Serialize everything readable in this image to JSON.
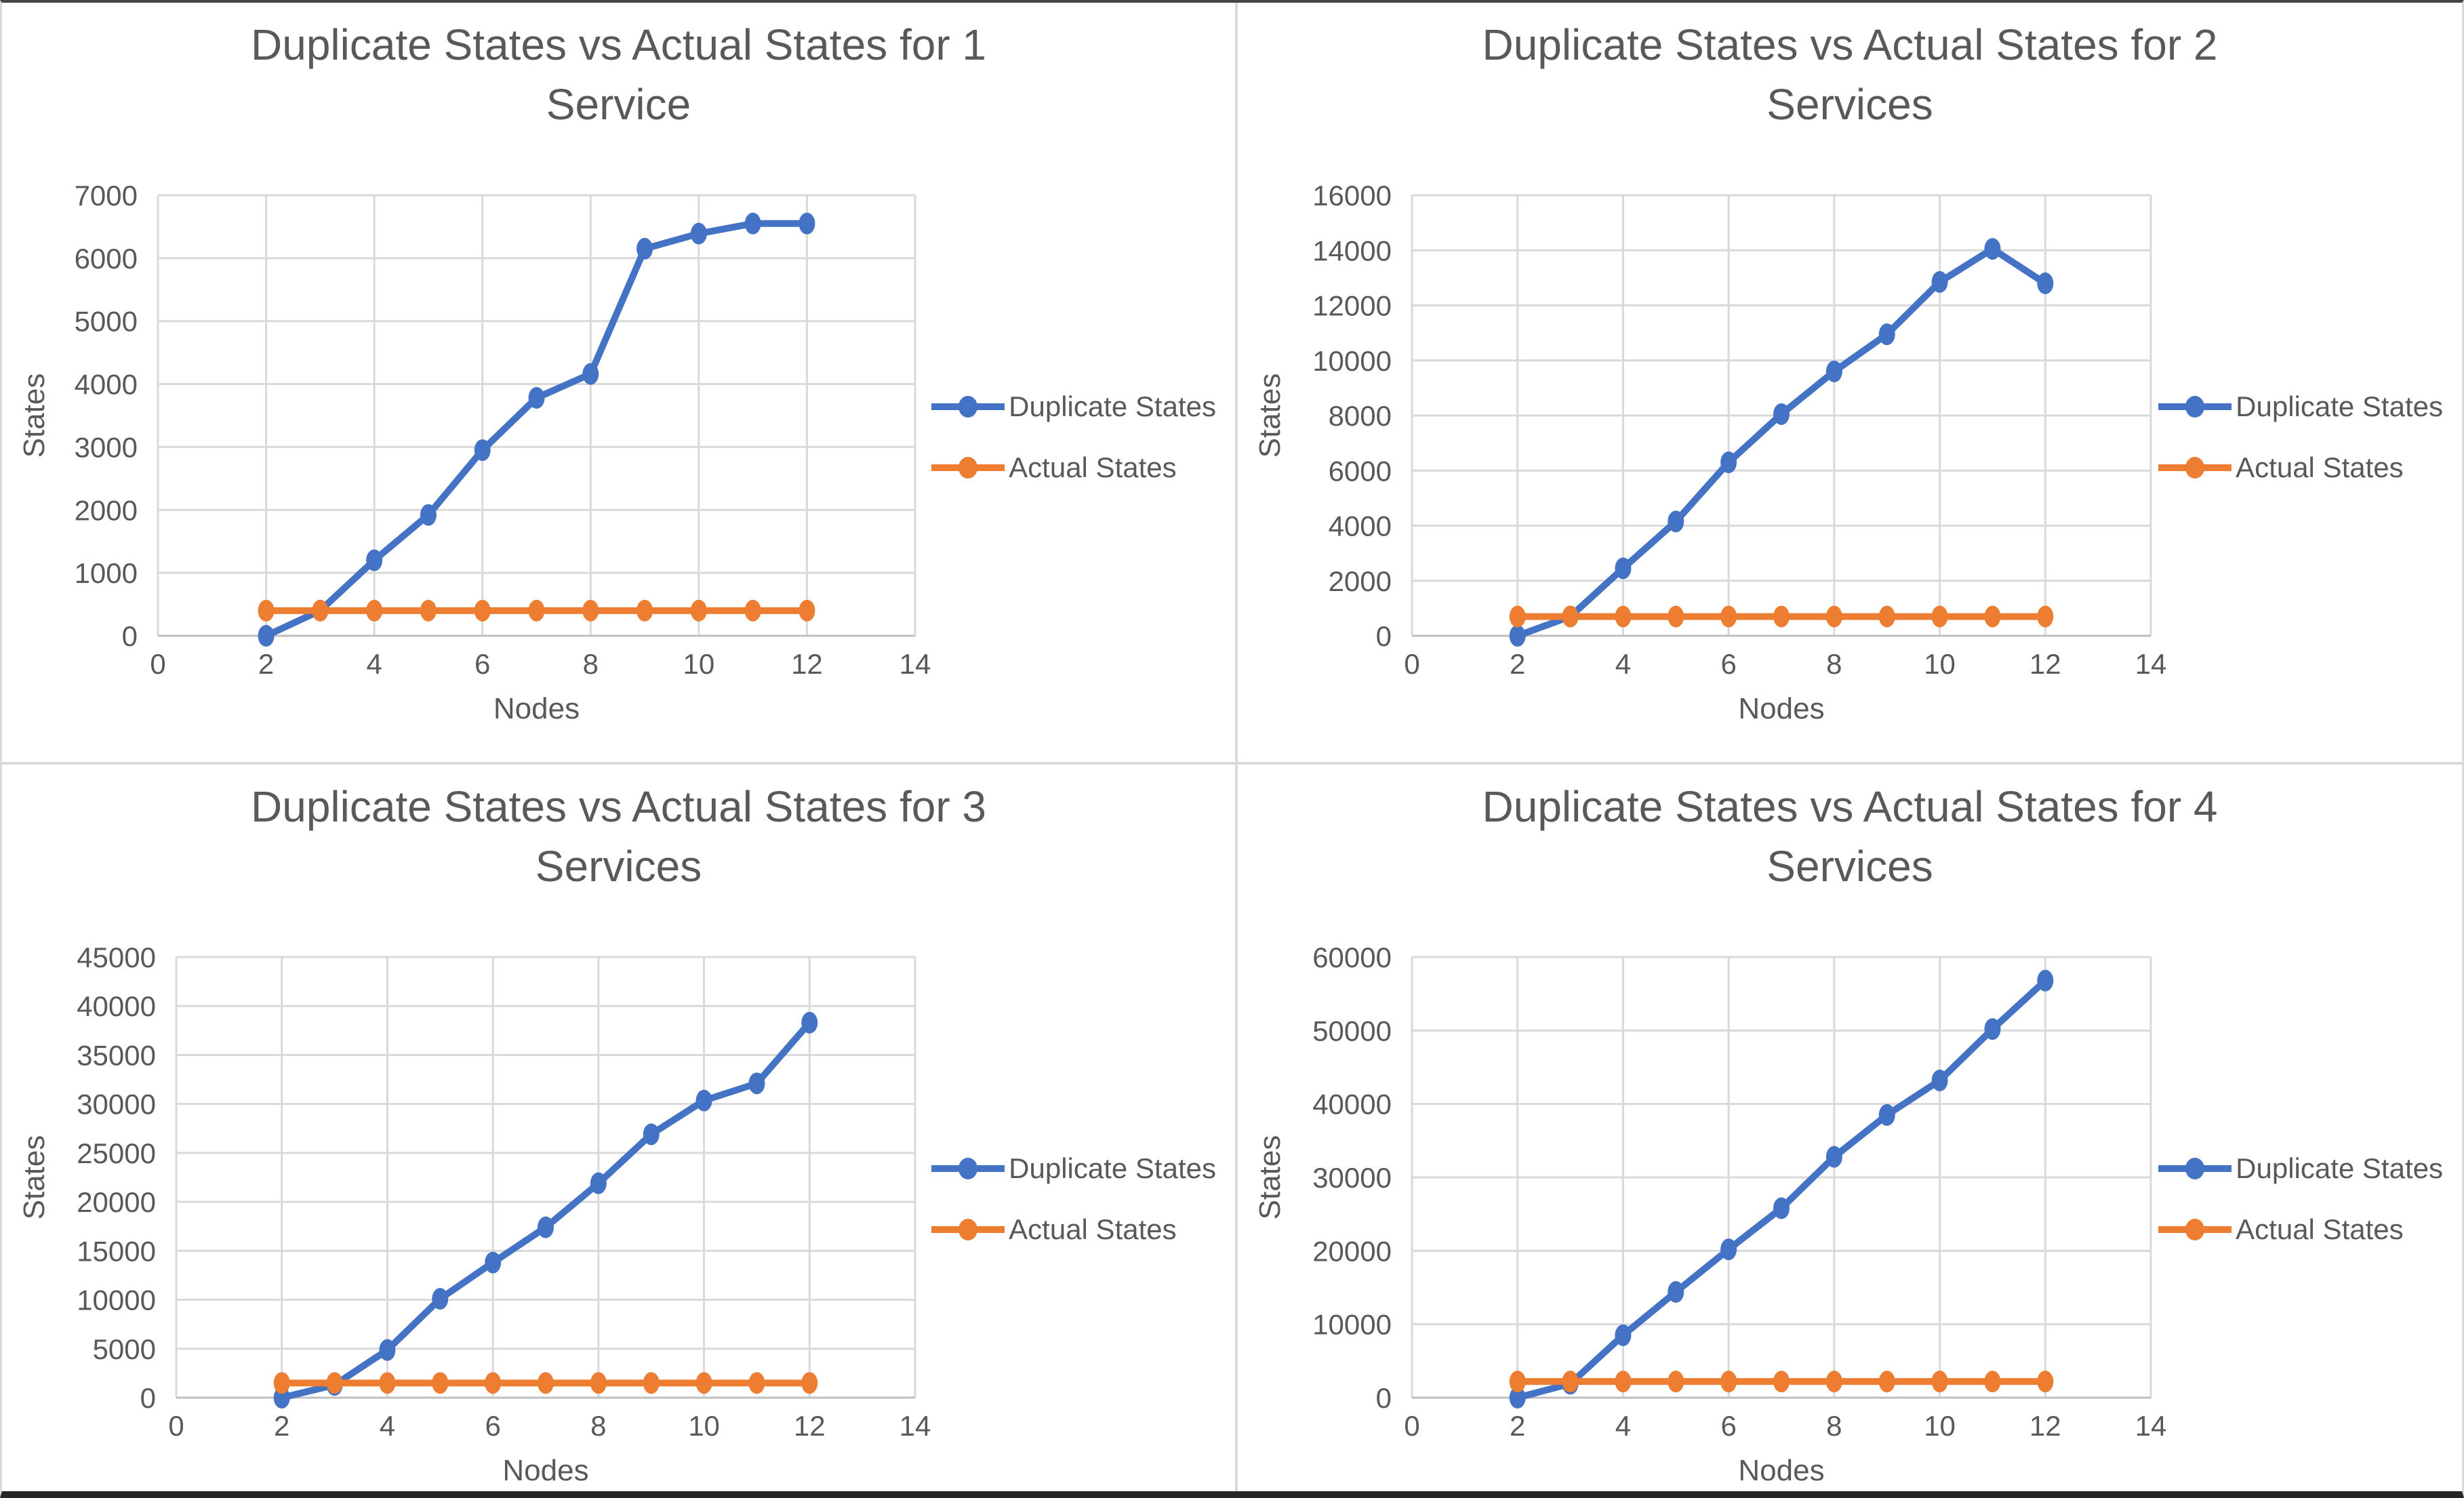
{
  "page": {
    "background": "#ffffff",
    "divider_color": "#d9d9d9",
    "top_edge_color": "#454545",
    "bottom_edge_color": "#262626"
  },
  "colors": {
    "duplicate_series": "#4472C4",
    "actual_series": "#ED7D31",
    "gridline": "#D9D9D9",
    "axis_line": "#BFBFBF",
    "text": "#595959"
  },
  "chart_data": [
    {
      "type": "line",
      "title": "Duplicate States vs Actual States for 1 Service",
      "title_line1": "Duplicate States vs Actual States for 1",
      "title_line2": "Service",
      "xlabel": "Nodes",
      "ylabel": "States",
      "xlim": [
        0,
        14
      ],
      "xtick_step": 2,
      "ylim": [
        0,
        7000
      ],
      "ytick_step": 1000,
      "grid": true,
      "legend_position": "right",
      "x": [
        2,
        3,
        4,
        5,
        6,
        7,
        8,
        9,
        10,
        11,
        12
      ],
      "series": [
        {
          "name": "Duplicate States",
          "color": "#4472C4",
          "values": [
            0,
            400,
            1200,
            1920,
            2950,
            3780,
            4160,
            6150,
            6390,
            6550,
            6550
          ]
        },
        {
          "name": "Actual States",
          "color": "#ED7D31",
          "values": [
            400,
            400,
            400,
            400,
            400,
            400,
            400,
            400,
            400,
            400,
            400
          ]
        }
      ]
    },
    {
      "type": "line",
      "title": "Duplicate States vs Actual States for 2 Services",
      "title_line1": "Duplicate States vs Actual States for 2",
      "title_line2": "Services",
      "xlabel": "Nodes",
      "ylabel": "States",
      "xlim": [
        0,
        14
      ],
      "xtick_step": 2,
      "ylim": [
        0,
        16000
      ],
      "ytick_step": 2000,
      "grid": true,
      "legend_position": "right",
      "x": [
        2,
        3,
        4,
        5,
        6,
        7,
        8,
        9,
        10,
        11,
        12
      ],
      "series": [
        {
          "name": "Duplicate States",
          "color": "#4472C4",
          "values": [
            0,
            700,
            2450,
            4150,
            6300,
            8050,
            9600,
            10950,
            12850,
            14050,
            12800
          ]
        },
        {
          "name": "Actual States",
          "color": "#ED7D31",
          "values": [
            700,
            700,
            700,
            700,
            700,
            700,
            700,
            700,
            700,
            700,
            700
          ]
        }
      ]
    },
    {
      "type": "line",
      "title": "Duplicate States vs Actual States for 3 Services",
      "title_line1": "Duplicate States vs Actual States for 3",
      "title_line2": "Services",
      "xlabel": "Nodes",
      "ylabel": "States",
      "xlim": [
        0,
        14
      ],
      "xtick_step": 2,
      "ylim": [
        0,
        45000
      ],
      "ytick_step": 5000,
      "grid": true,
      "legend_position": "right",
      "x": [
        2,
        3,
        4,
        5,
        6,
        7,
        8,
        9,
        10,
        11,
        12
      ],
      "series": [
        {
          "name": "Duplicate States",
          "color": "#4472C4",
          "values": [
            0,
            1300,
            4870,
            10100,
            13800,
            17400,
            21900,
            26900,
            30350,
            32100,
            38300
          ]
        },
        {
          "name": "Actual States",
          "color": "#ED7D31",
          "values": [
            1500,
            1500,
            1500,
            1500,
            1500,
            1500,
            1500,
            1500,
            1500,
            1500,
            1500
          ]
        }
      ]
    },
    {
      "type": "line",
      "title": "Duplicate States vs Actual States for 4 Services",
      "title_line1": "Duplicate States vs Actual States for 4",
      "title_line2": "Services",
      "xlabel": "Nodes",
      "ylabel": "States",
      "xlim": [
        0,
        14
      ],
      "xtick_step": 2,
      "ylim": [
        0,
        60000
      ],
      "ytick_step": 10000,
      "grid": true,
      "legend_position": "right",
      "x": [
        2,
        3,
        4,
        5,
        6,
        7,
        8,
        9,
        10,
        11,
        12
      ],
      "series": [
        {
          "name": "Duplicate States",
          "color": "#4472C4",
          "values": [
            0,
            1900,
            8500,
            14400,
            20200,
            25800,
            32800,
            38500,
            43200,
            50200,
            56800
          ]
        },
        {
          "name": "Actual States",
          "color": "#ED7D31",
          "values": [
            2200,
            2200,
            2200,
            2200,
            2200,
            2200,
            2200,
            2200,
            2200,
            2200,
            2200
          ]
        }
      ]
    }
  ]
}
